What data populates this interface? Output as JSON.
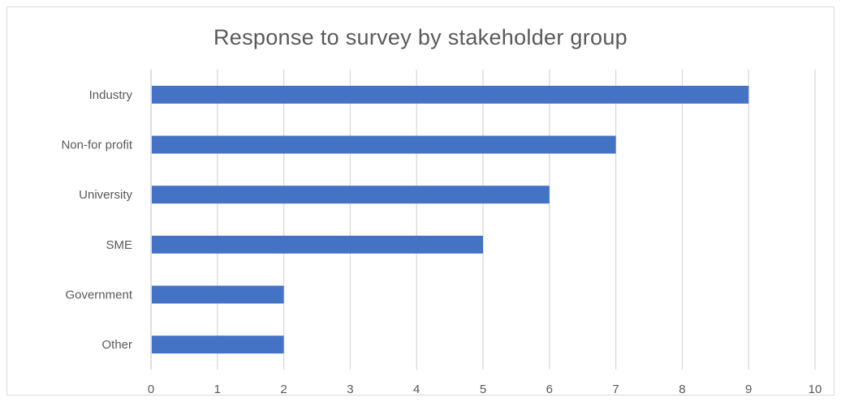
{
  "chart_data": {
    "type": "bar",
    "orientation": "horizontal",
    "title": "Response to survey by stakeholder group",
    "xlabel": "",
    "ylabel": "",
    "categories": [
      "Industry",
      "Non-for profit",
      "University",
      "SME",
      "Government",
      "Other"
    ],
    "values": [
      9,
      7,
      6,
      5,
      2,
      2
    ],
    "xlim": [
      0,
      10
    ],
    "xticks": [
      "0",
      "1",
      "2",
      "3",
      "4",
      "5",
      "6",
      "7",
      "8",
      "9",
      "10"
    ],
    "grid": true,
    "legend": "none",
    "bar_color": "#4472c4"
  }
}
